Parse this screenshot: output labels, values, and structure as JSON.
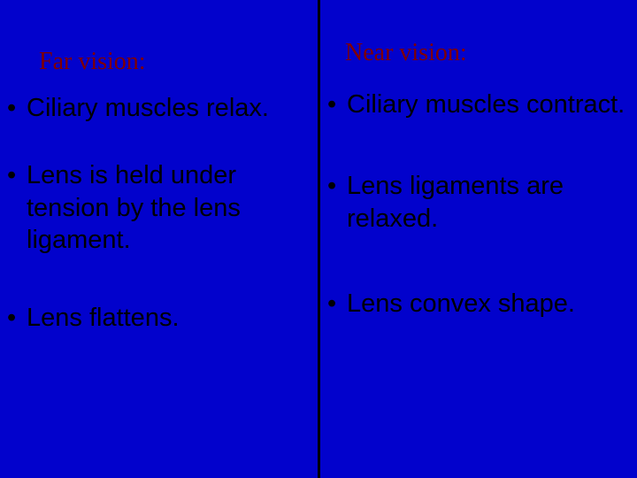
{
  "slide": {
    "background_color": "#0202cc",
    "divider_color": "#000000",
    "heading_color": "#800000",
    "text_color": "#000000",
    "heading_font_family": "Georgia, serif",
    "body_font_family": "Comic Sans MS, cursive",
    "heading_fontsize": 28,
    "body_fontsize": 29,
    "left": {
      "heading": "Far vision:",
      "bullets": [
        "Ciliary muscles relax.",
        "Lens is held under tension by the lens ligament.",
        "Lens flattens."
      ]
    },
    "right": {
      "heading": "Near vision:",
      "bullets": [
        "Ciliary muscles contract.",
        "Lens ligaments are relaxed.",
        "Lens convex shape."
      ]
    }
  }
}
